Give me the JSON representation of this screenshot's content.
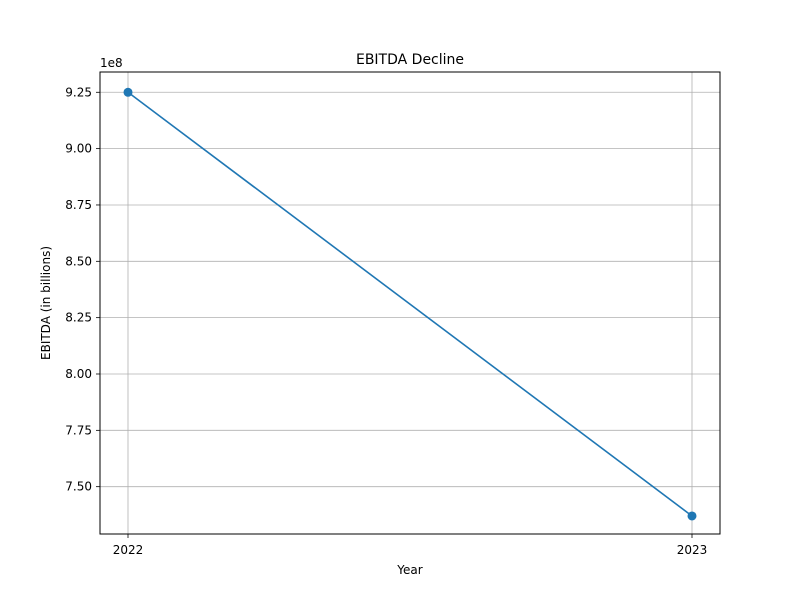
{
  "chart_data": {
    "type": "line",
    "title": "EBITDA Decline",
    "xlabel": "Year",
    "ylabel": "EBITDA (in billions)",
    "y_offset_label": "1e8",
    "x": [
      "2022",
      "2023"
    ],
    "series": [
      {
        "values": [
          925000000,
          737000000
        ],
        "color": "#1f77b4",
        "marker": "circle"
      }
    ],
    "ylim": [
      729000000,
      934000000
    ],
    "yticks": [
      750000000,
      775000000,
      800000000,
      825000000,
      850000000,
      875000000,
      900000000,
      925000000
    ],
    "ytick_labels": [
      "7.50",
      "7.75",
      "8.00",
      "8.25",
      "8.50",
      "8.75",
      "9.00",
      "9.25"
    ],
    "grid": true
  }
}
